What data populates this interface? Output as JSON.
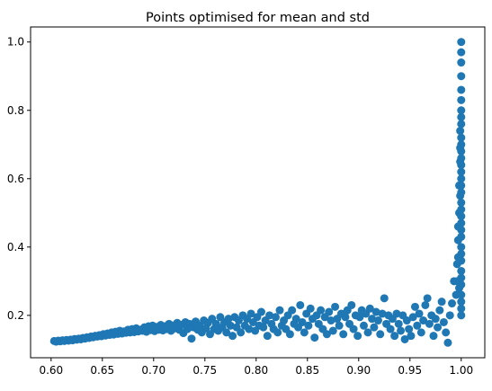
{
  "chart_data": {
    "type": "scatter",
    "title": "Points optimised for mean and std",
    "xlabel": "",
    "ylabel": "",
    "xlim": [
      0.58,
      1.023
    ],
    "ylim": [
      0.076,
      1.044
    ],
    "xticks": [
      "0.60",
      "0.65",
      "0.70",
      "0.75",
      "0.80",
      "0.85",
      "0.90",
      "0.95",
      "1.00"
    ],
    "yticks": [
      "0.2",
      "0.4",
      "0.6",
      "0.8",
      "1.0"
    ],
    "grid": false,
    "legend": "none",
    "color": "#1f77b4",
    "series": [
      {
        "points": [
          [
            0.603,
            0.125
          ],
          [
            0.605,
            0.123
          ],
          [
            0.607,
            0.126
          ],
          [
            0.609,
            0.124
          ],
          [
            0.611,
            0.127
          ],
          [
            0.613,
            0.125
          ],
          [
            0.615,
            0.128
          ],
          [
            0.617,
            0.126
          ],
          [
            0.619,
            0.129
          ],
          [
            0.621,
            0.127
          ],
          [
            0.623,
            0.131
          ],
          [
            0.625,
            0.129
          ],
          [
            0.627,
            0.132
          ],
          [
            0.629,
            0.13
          ],
          [
            0.631,
            0.134
          ],
          [
            0.633,
            0.132
          ],
          [
            0.635,
            0.136
          ],
          [
            0.637,
            0.134
          ],
          [
            0.639,
            0.138
          ],
          [
            0.641,
            0.136
          ],
          [
            0.643,
            0.14
          ],
          [
            0.645,
            0.138
          ],
          [
            0.647,
            0.142
          ],
          [
            0.649,
            0.139
          ],
          [
            0.651,
            0.145
          ],
          [
            0.653,
            0.141
          ],
          [
            0.655,
            0.147
          ],
          [
            0.657,
            0.143
          ],
          [
            0.659,
            0.15
          ],
          [
            0.661,
            0.144
          ],
          [
            0.663,
            0.152
          ],
          [
            0.665,
            0.146
          ],
          [
            0.667,
            0.155
          ],
          [
            0.669,
            0.147
          ],
          [
            0.671,
            0.153
          ],
          [
            0.673,
            0.149
          ],
          [
            0.675,
            0.158
          ],
          [
            0.677,
            0.15
          ],
          [
            0.679,
            0.16
          ],
          [
            0.681,
            0.151
          ],
          [
            0.683,
            0.162
          ],
          [
            0.685,
            0.153
          ],
          [
            0.687,
            0.158
          ],
          [
            0.689,
            0.155
          ],
          [
            0.691,
            0.165
          ],
          [
            0.693,
            0.152
          ],
          [
            0.695,
            0.168
          ],
          [
            0.697,
            0.157
          ],
          [
            0.699,
            0.17
          ],
          [
            0.701,
            0.154
          ],
          [
            0.703,
            0.166
          ],
          [
            0.705,
            0.158
          ],
          [
            0.707,
            0.172
          ],
          [
            0.709,
            0.156
          ],
          [
            0.711,
            0.168
          ],
          [
            0.713,
            0.16
          ],
          [
            0.715,
            0.175
          ],
          [
            0.717,
            0.155
          ],
          [
            0.719,
            0.17
          ],
          [
            0.721,
            0.162
          ],
          [
            0.723,
            0.178
          ],
          [
            0.725,
            0.158
          ],
          [
            0.727,
            0.172
          ],
          [
            0.729,
            0.148
          ],
          [
            0.731,
            0.18
          ],
          [
            0.733,
            0.16
          ],
          [
            0.735,
            0.175
          ],
          [
            0.737,
            0.132
          ],
          [
            0.739,
            0.165
          ],
          [
            0.741,
            0.182
          ],
          [
            0.743,
            0.158
          ],
          [
            0.745,
            0.17
          ],
          [
            0.747,
            0.15
          ],
          [
            0.749,
            0.185
          ],
          [
            0.751,
            0.162
          ],
          [
            0.753,
            0.178
          ],
          [
            0.755,
            0.145
          ],
          [
            0.757,
            0.19
          ],
          [
            0.759,
            0.16
          ],
          [
            0.761,
            0.175
          ],
          [
            0.763,
            0.155
          ],
          [
            0.765,
            0.195
          ],
          [
            0.767,
            0.165
          ],
          [
            0.769,
            0.18
          ],
          [
            0.771,
            0.15
          ],
          [
            0.773,
            0.19
          ],
          [
            0.775,
            0.17
          ],
          [
            0.777,
            0.14
          ],
          [
            0.779,
            0.195
          ],
          [
            0.781,
            0.165
          ],
          [
            0.783,
            0.185
          ],
          [
            0.785,
            0.15
          ],
          [
            0.787,
            0.2
          ],
          [
            0.789,
            0.17
          ],
          [
            0.791,
            0.19
          ],
          [
            0.793,
            0.16
          ],
          [
            0.795,
            0.205
          ],
          [
            0.797,
            0.18
          ],
          [
            0.799,
            0.155
          ],
          [
            0.801,
            0.195
          ],
          [
            0.803,
            0.17
          ],
          [
            0.805,
            0.21
          ],
          [
            0.807,
            0.165
          ],
          [
            0.809,
            0.185
          ],
          [
            0.811,
            0.14
          ],
          [
            0.813,
            0.2
          ],
          [
            0.815,
            0.175
          ],
          [
            0.817,
            0.16
          ],
          [
            0.819,
            0.195
          ],
          [
            0.821,
            0.15
          ],
          [
            0.823,
            0.215
          ],
          [
            0.825,
            0.17
          ],
          [
            0.827,
            0.185
          ],
          [
            0.829,
            0.16
          ],
          [
            0.831,
            0.2
          ],
          [
            0.833,
            0.145
          ],
          [
            0.835,
            0.215
          ],
          [
            0.837,
            0.175
          ],
          [
            0.839,
            0.19
          ],
          [
            0.841,
            0.165
          ],
          [
            0.843,
            0.23
          ],
          [
            0.845,
            0.18
          ],
          [
            0.847,
            0.15
          ],
          [
            0.849,
            0.205
          ],
          [
            0.851,
            0.17
          ],
          [
            0.853,
            0.22
          ],
          [
            0.855,
            0.19
          ],
          [
            0.857,
            0.135
          ],
          [
            0.859,
            0.2
          ],
          [
            0.861,
            0.175
          ],
          [
            0.863,
            0.215
          ],
          [
            0.865,
            0.16
          ],
          [
            0.867,
            0.195
          ],
          [
            0.869,
            0.145
          ],
          [
            0.871,
            0.21
          ],
          [
            0.873,
            0.185
          ],
          [
            0.875,
            0.155
          ],
          [
            0.877,
            0.225
          ],
          [
            0.879,
            0.19
          ],
          [
            0.881,
            0.17
          ],
          [
            0.883,
            0.205
          ],
          [
            0.885,
            0.145
          ],
          [
            0.887,
            0.195
          ],
          [
            0.889,
            0.215
          ],
          [
            0.891,
            0.175
          ],
          [
            0.893,
            0.23
          ],
          [
            0.895,
            0.16
          ],
          [
            0.897,
            0.2
          ],
          [
            0.899,
            0.14
          ],
          [
            0.901,
            0.195
          ],
          [
            0.903,
            0.215
          ],
          [
            0.905,
            0.17
          ],
          [
            0.907,
            0.205
          ],
          [
            0.909,
            0.15
          ],
          [
            0.911,
            0.22
          ],
          [
            0.913,
            0.19
          ],
          [
            0.915,
            0.165
          ],
          [
            0.917,
            0.21
          ],
          [
            0.919,
            0.185
          ],
          [
            0.921,
            0.145
          ],
          [
            0.923,
            0.205
          ],
          [
            0.925,
            0.25
          ],
          [
            0.927,
            0.175
          ],
          [
            0.929,
            0.2
          ],
          [
            0.931,
            0.16
          ],
          [
            0.933,
            0.19
          ],
          [
            0.935,
            0.14
          ],
          [
            0.937,
            0.205
          ],
          [
            0.939,
            0.175
          ],
          [
            0.941,
            0.155
          ],
          [
            0.943,
            0.2
          ],
          [
            0.945,
            0.13
          ],
          [
            0.947,
            0.185
          ],
          [
            0.949,
            0.16
          ],
          [
            0.951,
            0.14
          ],
          [
            0.953,
            0.195
          ],
          [
            0.955,
            0.225
          ],
          [
            0.957,
            0.17
          ],
          [
            0.959,
            0.205
          ],
          [
            0.961,
            0.15
          ],
          [
            0.963,
            0.185
          ],
          [
            0.965,
            0.23
          ],
          [
            0.967,
            0.25
          ],
          [
            0.969,
            0.175
          ],
          [
            0.971,
            0.2
          ],
          [
            0.973,
            0.14
          ],
          [
            0.975,
            0.19
          ],
          [
            0.977,
            0.165
          ],
          [
            0.979,
            0.215
          ],
          [
            0.981,
            0.24
          ],
          [
            0.983,
            0.18
          ],
          [
            0.985,
            0.15
          ],
          [
            0.987,
            0.12
          ],
          [
            0.989,
            0.2
          ],
          [
            0.991,
            0.235
          ],
          [
            0.993,
            0.3
          ],
          [
            0.995,
            0.26
          ],
          [
            0.996,
            0.35
          ],
          [
            0.997,
            0.42
          ],
          [
            0.998,
            0.5
          ],
          [
            0.998,
            0.28
          ],
          [
            0.999,
            0.55
          ],
          [
            0.999,
            0.65
          ],
          [
            0.999,
            0.74
          ],
          [
            1.0,
            0.2
          ],
          [
            1.0,
            0.22
          ],
          [
            1.0,
            0.24
          ],
          [
            1.0,
            0.26
          ],
          [
            1.0,
            0.29
          ],
          [
            1.0,
            0.31
          ],
          [
            1.0,
            0.33
          ],
          [
            1.0,
            0.36
          ],
          [
            1.0,
            0.38
          ],
          [
            1.0,
            0.4
          ],
          [
            1.0,
            0.43
          ],
          [
            1.0,
            0.45
          ],
          [
            1.0,
            0.47
          ],
          [
            1.0,
            0.49
          ],
          [
            1.0,
            0.51
          ],
          [
            1.0,
            0.53
          ],
          [
            1.0,
            0.56
          ],
          [
            1.0,
            0.58
          ],
          [
            1.0,
            0.6
          ],
          [
            1.0,
            0.62
          ],
          [
            1.0,
            0.64
          ],
          [
            1.0,
            0.66
          ],
          [
            1.0,
            0.68
          ],
          [
            1.0,
            0.7
          ],
          [
            1.0,
            0.72
          ],
          [
            1.0,
            0.76
          ],
          [
            1.0,
            0.78
          ],
          [
            1.0,
            0.8
          ],
          [
            1.0,
            0.83
          ],
          [
            1.0,
            0.86
          ],
          [
            1.0,
            0.9
          ],
          [
            1.0,
            0.94
          ],
          [
            1.0,
            0.97
          ],
          [
            1.0,
            1.0
          ],
          [
            0.997,
            0.46
          ],
          [
            0.998,
            0.58
          ],
          [
            0.996,
            0.3
          ],
          [
            0.999,
            0.69
          ],
          [
            0.997,
            0.37
          ]
        ]
      }
    ]
  }
}
